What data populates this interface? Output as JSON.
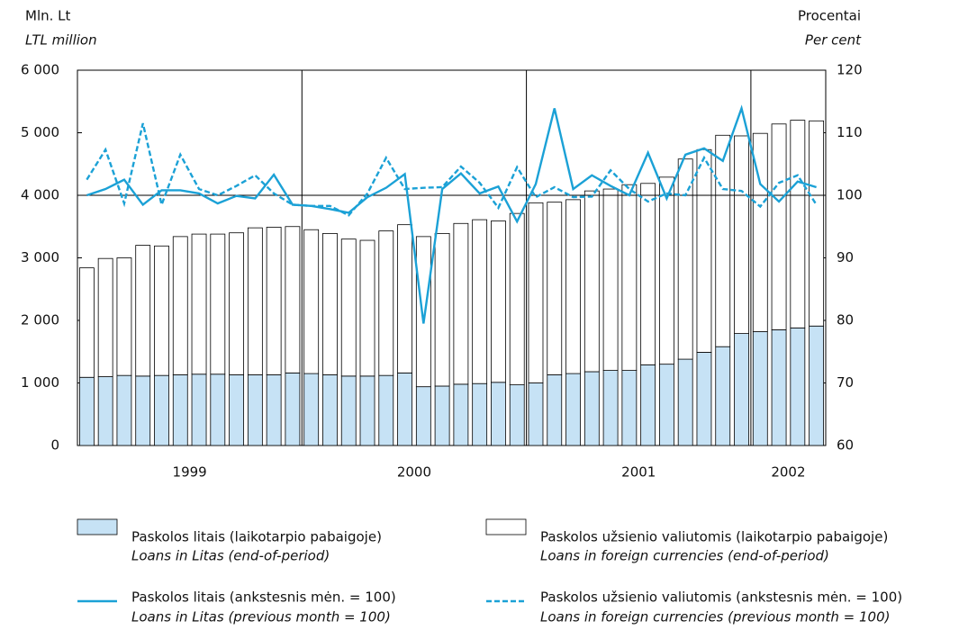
{
  "chart_data": {
    "type": "bar",
    "y_label": "Mln. Lt",
    "y_label_en": "LTL million",
    "y2_label": "Procentai",
    "y2_label_en": "Per cent",
    "year_labels": [
      "1999",
      "2000",
      "2001",
      "2002"
    ],
    "categories": [
      null,
      null,
      null,
      null,
      null,
      null,
      null,
      null,
      null,
      null,
      null,
      null,
      null,
      null,
      null,
      null,
      null,
      null,
      null,
      null,
      null,
      null,
      null,
      null,
      null,
      null,
      null,
      null,
      null,
      null,
      null,
      null,
      null,
      null,
      null,
      null,
      null,
      null,
      null,
      null
    ],
    "ylim": [
      0,
      6000
    ],
    "yticks": [
      0,
      {
        "value": 1000,
        "label": "1 000"
      },
      {
        "value": 2000,
        "label": "2 000"
      },
      {
        "value": 3000,
        "label": "3 000"
      },
      {
        "value": 4000,
        "label": "4 000"
      },
      {
        "value": 5000,
        "label": "5 000"
      },
      {
        "value": 6000,
        "label": "6 000"
      }
    ],
    "y2lim": [
      60,
      120
    ],
    "y2ticks": [
      60,
      70,
      80,
      90,
      100,
      110,
      120
    ],
    "reference_line": 100,
    "series": [
      {
        "name": "Paskolos litais (laikotarpio pabaigoje)",
        "name_en": "Loans in Litas (end-of-period)",
        "color": "#c6e2f5",
        "kind": "bar",
        "values": [
          1090,
          1100,
          1120,
          1110,
          1120,
          1130,
          1140,
          1140,
          1130,
          1130,
          1130,
          1160,
          1150,
          1130,
          1110,
          1110,
          1120,
          1160,
          940,
          950,
          980,
          990,
          1010,
          970,
          1000,
          1130,
          1150,
          1180,
          1200,
          1200,
          1290,
          1300,
          1380,
          1490,
          1580,
          1790,
          1820,
          1850,
          1880,
          1910
        ]
      },
      {
        "name": "Paskolos užsienio valiutomis (laikotarpio pabaigoje)",
        "name_en": "Loans in foreign currencies (end-of-period)",
        "color": "#ffffff",
        "kind": "bar",
        "values": [
          1750,
          1890,
          1880,
          2090,
          2070,
          2210,
          2240,
          2240,
          2270,
          2350,
          2360,
          2340,
          2300,
          2260,
          2190,
          2170,
          2310,
          2370,
          2400,
          2440,
          2570,
          2620,
          2580,
          2740,
          2880,
          2760,
          2780,
          2890,
          2900,
          2970,
          2900,
          2990,
          3200,
          3240,
          3380,
          3160,
          3170,
          3290,
          3320,
          3280
        ]
      },
      {
        "name": "Paskolos litais (ankstesnis mėn. = 100)",
        "name_en": "Loans in Litas (previous month = 100)",
        "color": "#1ba1d6",
        "kind": "line",
        "axis": "y2",
        "dash": false,
        "values": [
          100,
          101,
          102.5,
          98.5,
          100.8,
          100.8,
          100.3,
          98.7,
          99.9,
          99.5,
          103.3,
          98.5,
          98.3,
          97.8,
          97.2,
          99.7,
          101.2,
          103.4,
          79.5,
          101,
          103.5,
          100.3,
          101.4,
          95.8,
          101.8,
          113.9,
          101,
          103.2,
          101.5,
          100,
          106.8,
          99.5,
          106.5,
          107.5,
          105.5,
          113.9,
          101.8,
          99,
          102.2,
          101.3
        ]
      },
      {
        "name": "Paskolos užsienio valiutomis (ankstesnis mėn. = 100)",
        "name_en": "Loans in foreign currencies (previous month = 100)",
        "color": "#1ba1d6",
        "kind": "line",
        "axis": "y2",
        "dash": true,
        "values": [
          102.5,
          107.3,
          98.7,
          111.5,
          98.5,
          106.5,
          101,
          100,
          101.5,
          103.2,
          100.3,
          98.5,
          98.3,
          98.3,
          96.8,
          100.3,
          106,
          101,
          101.2,
          101.3,
          104.6,
          102,
          98,
          104.5,
          99.7,
          101.3,
          99.7,
          99.8,
          104,
          101,
          99,
          100.3,
          100,
          106,
          101,
          100.7,
          98.2,
          102,
          103.2,
          98.5
        ]
      }
    ]
  }
}
